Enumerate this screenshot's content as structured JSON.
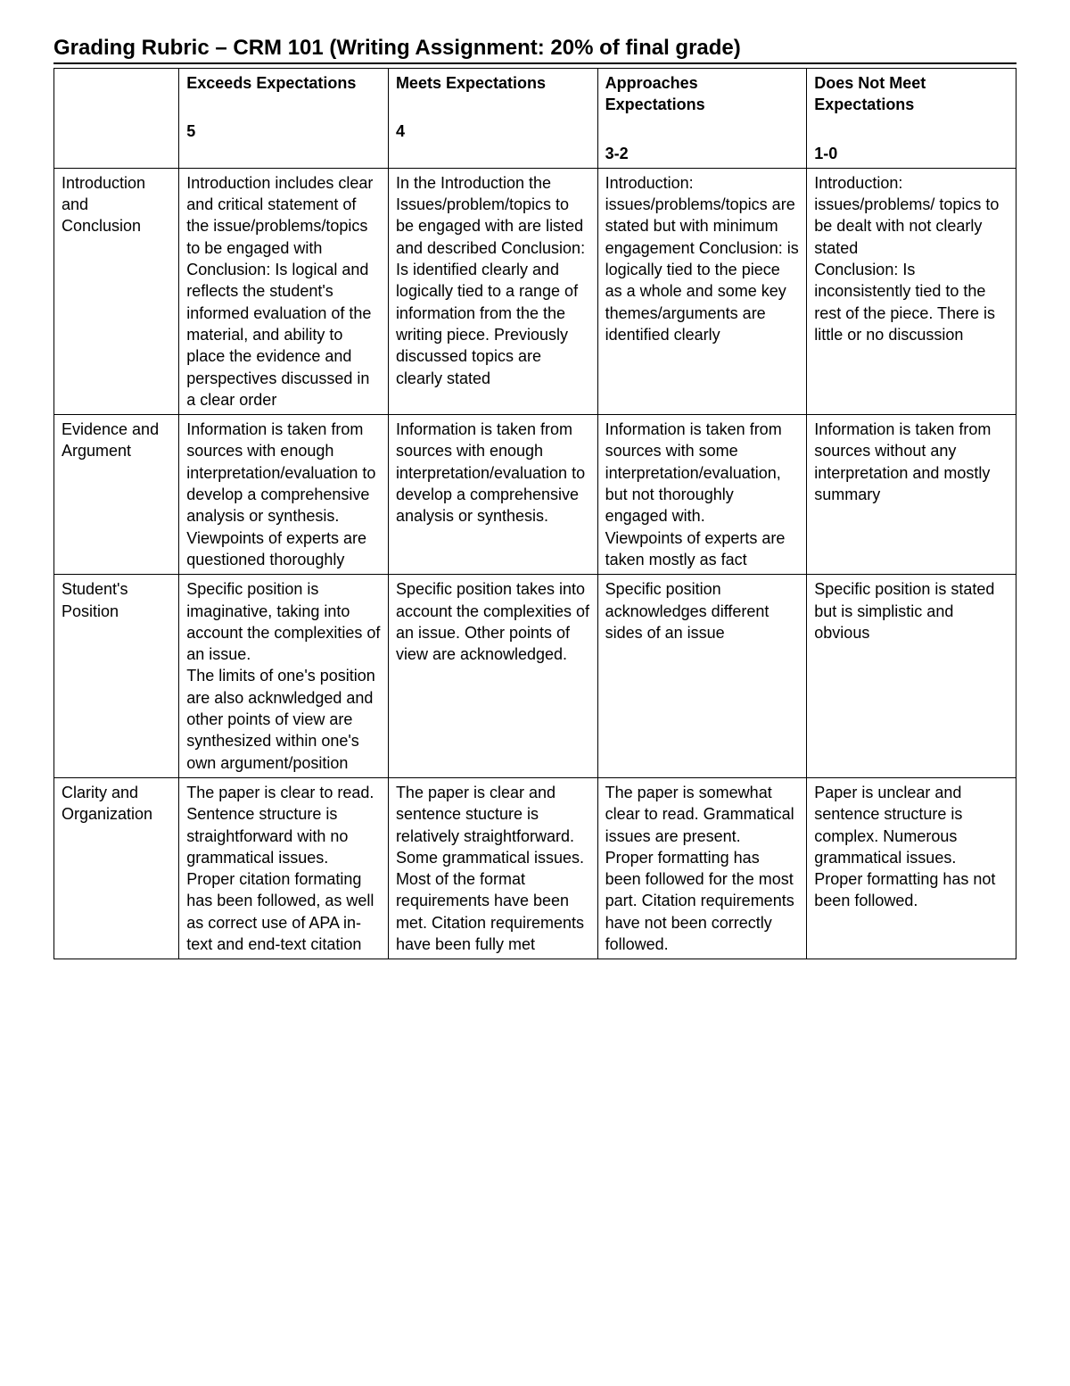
{
  "title": "Grading Rubric – CRM 101 (Writing Assignment: 20% of final grade)",
  "columns": [
    {
      "label": "",
      "points": ""
    },
    {
      "label": "Exceeds Expectations",
      "points": "5"
    },
    {
      "label": "Meets Expectations",
      "points": "4"
    },
    {
      "label": "Approaches Expectations",
      "points": "3-2"
    },
    {
      "label": "Does Not Meet Expectations",
      "points": "1-0"
    }
  ],
  "rows": [
    {
      "criteria": "Introduction and Conclusion",
      "cells": [
        "Introduction includes clear and critical statement of the issue/problems/topics to be engaged with Conclusion: Is logical and reflects the student's informed evaluation of the material, and ability to place the evidence and perspectives discussed in a clear order",
        "In the Introduction the Issues/problem/topics to be engaged with are listed and described Conclusion: Is identified clearly and logically tied to a range of information from the the writing piece. Previously discussed topics are clearly stated",
        "Introduction: issues/problems/topics are stated but with minimum engagement Conclusion: is logically tied to the piece as a whole and some key themes/arguments are identified clearly",
        "Introduction: issues/problems/ topics to be dealt with not clearly stated\nConclusion: Is inconsistently tied to the rest of the piece. There is little or no discussion"
      ]
    },
    {
      "criteria": "Evidence and Argument",
      "cells": [
        "Information is taken from sources with enough interpretation/evaluation to develop a comprehensive analysis or synthesis.\nViewpoints of experts are questioned thoroughly",
        "Information is taken from sources with enough interpretation/evaluation to develop a comprehensive analysis or synthesis.",
        "Information is taken from sources with some interpretation/evaluation, but not thoroughly engaged with.\nViewpoints of experts are taken mostly as fact",
        "Information is taken from sources without any interpretation and mostly summary"
      ]
    },
    {
      "criteria": "Student's Position",
      "cells": [
        "Specific position is imaginative, taking into account the complexities of an issue.\nThe limits of one's position are also acknwledged and other points of view are synthesized within one's own argument/position",
        "Specific position takes into account the complexities of an issue. Other points of view are acknowledged.",
        "Specific position acknowledges different sides of an issue",
        "Specific position is stated but is simplistic and obvious"
      ]
    },
    {
      "criteria": "Clarity and Organization",
      "cells": [
        "The paper is clear to read. Sentence structure is straightforward with no grammatical issues. Proper citation formating has been followed, as well as correct use of APA  in-text and end-text citation",
        "The paper is clear and sentence stucture is relatively straightforward.\nSome grammatical issues.\nMost of the format requirements have been met. Citation requirements have been fully met",
        "The paper is somewhat clear to read. Grammatical issues are present.\nProper formatting has been followed for the most part. Citation requirements have not been correctly followed.",
        "Paper is unclear and sentence structure is complex. Numerous grammatical issues.\nProper formatting has not been followed."
      ]
    }
  ]
}
